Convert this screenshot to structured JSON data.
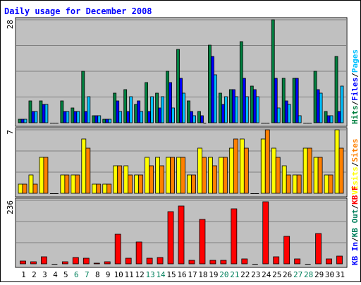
{
  "colors": {
    "background": "#ffffff",
    "panel": "#c0c0c0",
    "grid": "#808080",
    "axis_text": "#000000",
    "title_text": "#0000ff",
    "weekend_label": "#00805c",
    "pages": "#00c0ff",
    "files": "#0000ff",
    "hits": "#008040",
    "sites": "#ff8000",
    "visits": "#ffff00",
    "kb": "#ff0000"
  },
  "chart_data": {
    "type": "bar",
    "title": "Daily usage for December 2008",
    "categories": [
      "1",
      "2",
      "3",
      "4",
      "5",
      "6",
      "7",
      "8",
      "9",
      "10",
      "11",
      "12",
      "13",
      "14",
      "15",
      "16",
      "17",
      "18",
      "19",
      "20",
      "21",
      "22",
      "23",
      "24",
      "25",
      "26",
      "27",
      "28",
      "29",
      "30",
      "31"
    ],
    "weekend_days": [
      "6",
      "7",
      "13",
      "14",
      "20",
      "21",
      "27",
      "28"
    ],
    "panels": [
      {
        "id": "hits_panel",
        "scale_label": "28",
        "ymax": 28,
        "legend": [
          {
            "text": "Hits",
            "color": "#008040"
          },
          {
            "text": "/",
            "color": "#000000"
          },
          {
            "text": "Files",
            "color": "#0000ff"
          },
          {
            "text": "/",
            "color": "#000000"
          },
          {
            "text": "Pages",
            "color": "#00c0ff"
          }
        ],
        "series": [
          {
            "name": "Hits",
            "color": "#008040",
            "values": [
              1,
              6,
              6,
              0,
              6,
              4,
              14,
              2,
              1,
              8,
              9,
              5,
              11,
              8,
              14,
              20,
              6,
              3,
              21,
              8,
              9,
              22,
              10,
              0,
              28,
              12,
              12,
              0,
              14,
              3,
              18
            ]
          },
          {
            "name": "Files",
            "color": "#0000ff",
            "values": [
              1,
              3,
              5,
              0,
              3,
              3,
              3,
              2,
              1,
              6,
              3,
              6,
              3,
              4,
              11,
              12,
              3,
              2,
              18,
              5,
              9,
              12,
              9,
              0,
              12,
              6,
              12,
              0,
              9,
              2,
              3
            ]
          },
          {
            "name": "Pages",
            "color": "#00c0ff",
            "values": [
              1,
              3,
              5,
              0,
              3,
              3,
              7,
              2,
              1,
              3,
              7,
              3,
              7,
              7,
              4,
              8,
              2,
              0,
              13,
              7,
              7,
              7,
              7,
              0,
              4,
              5,
              2,
              0,
              8,
              2,
              10
            ]
          }
        ]
      },
      {
        "id": "visits_panel",
        "scale_label": "7",
        "ymax": 7,
        "legend": [
          {
            "text": "Visits",
            "color": "#ffff00"
          },
          {
            "text": "/",
            "color": "#000000"
          },
          {
            "text": "Sites",
            "color": "#ff8000"
          }
        ],
        "series": [
          {
            "name": "Visits",
            "color": "#ffff00",
            "values": [
              1,
              2,
              4,
              0,
              2,
              2,
              6,
              1,
              1,
              3,
              3,
              2,
              4,
              4,
              4,
              4,
              2,
              5,
              4,
              4,
              5,
              6,
              0,
              6,
              5,
              3,
              2,
              5,
              4,
              2,
              7
            ]
          },
          {
            "name": "Sites",
            "color": "#ff8000",
            "values": [
              1,
              1,
              4,
              0,
              2,
              2,
              5,
              1,
              1,
              3,
              2,
              2,
              3,
              3,
              4,
              4,
              2,
              4,
              3,
              4,
              6,
              5,
              0,
              7,
              4,
              2,
              2,
              5,
              4,
              2,
              5
            ]
          }
        ]
      },
      {
        "id": "kb_panel",
        "scale_label": "236",
        "ymax": 236,
        "legend": [
          {
            "text": "KB In",
            "color": "#0000ff"
          },
          {
            "text": "/",
            "color": "#000000"
          },
          {
            "text": "KB Out",
            "color": "#00805c"
          },
          {
            "text": "/",
            "color": "#000000"
          },
          {
            "text": "KB F",
            "color": "#ff0000"
          }
        ],
        "series": [
          {
            "name": "KB F",
            "color": "#ff0000",
            "values": [
              10,
              8,
              27,
              0,
              7,
              24,
              22,
              2,
              8,
              111,
              21,
              81,
              22,
              24,
              194,
              214,
              14,
              166,
              13,
              14,
              205,
              18,
              0,
              230,
              25,
              102,
              18,
              0,
              114,
              18,
              30
            ]
          }
        ]
      }
    ]
  }
}
